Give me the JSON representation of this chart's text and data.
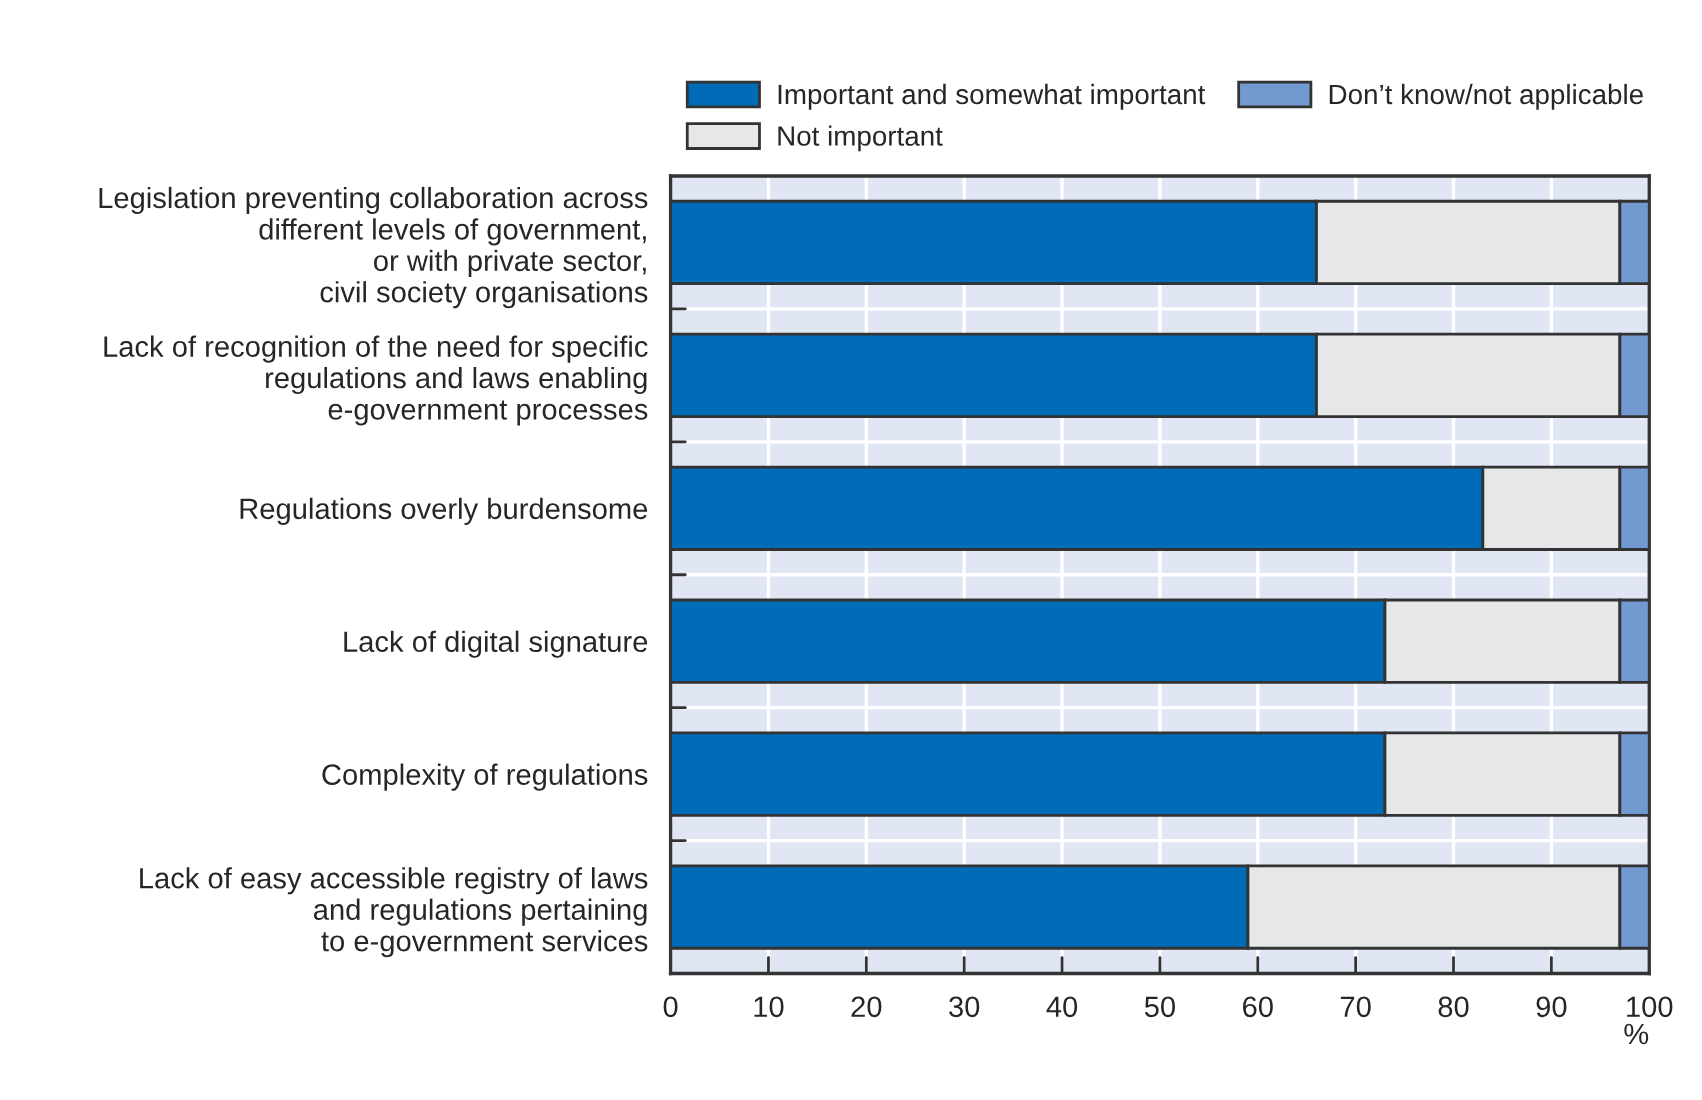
{
  "chart_data": {
    "type": "bar",
    "orientation": "horizontal",
    "stacked": true,
    "categories": [
      "Legislation preventing collaboration across\ndifferent levels of government,\nor with private sector,\ncivil society organisations",
      "Lack of recognition of the need for specific\nregulations and laws enabling\ne-government processes",
      "Regulations overly burdensome",
      "Lack of digital signature",
      "Complexity of regulations",
      "Lack of easy accessible registry of laws\nand regulations pertaining\nto e-government services"
    ],
    "series": [
      {
        "name": "Important and somewhat important",
        "color": "#006bb6",
        "values": [
          66,
          66,
          83,
          73,
          73,
          59
        ]
      },
      {
        "name": "Not important",
        "color": "#e6e7e8",
        "values": [
          31,
          31,
          14,
          24,
          24,
          38
        ]
      },
      {
        "name": "Don’t know/not applicable",
        "color": "#7399d1",
        "values": [
          3,
          3,
          3,
          3,
          3,
          3
        ]
      }
    ],
    "xlim": [
      0,
      100
    ],
    "xticks": [
      0,
      10,
      20,
      30,
      40,
      50,
      60,
      70,
      80,
      90,
      100
    ],
    "xlabel": "%",
    "grid": "x",
    "legend": "top"
  }
}
